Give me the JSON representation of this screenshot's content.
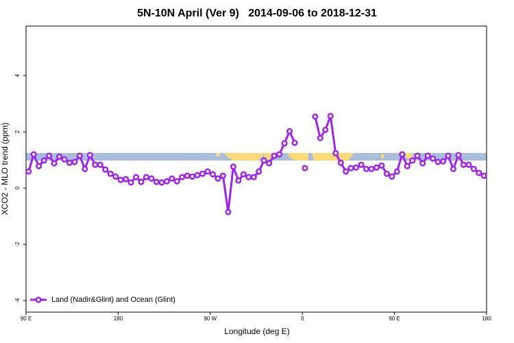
{
  "chart_data": {
    "type": "line",
    "title": "5N-10N April (Ver 9)   2014-09-06 to 2018-12-31",
    "x_label": "Longitude (deg E)",
    "y_label": "XCO2 - MLO trend (ppm)",
    "x": [
      92.5,
      97.5,
      102.5,
      107.5,
      112.5,
      117.5,
      122.5,
      127.5,
      132.5,
      137.5,
      142.5,
      147.5,
      152.5,
      157.5,
      162.5,
      167.5,
      172.5,
      177.5,
      182.5,
      187.5,
      192.5,
      197.5,
      202.5,
      207.5,
      212.5,
      217.5,
      222.5,
      227.5,
      232.5,
      237.5,
      242.5,
      247.5,
      252.5,
      257.5,
      262.5,
      267.5,
      272.5,
      277.5,
      282.5,
      287.5,
      292.5,
      297.5,
      302.5,
      307.5,
      312.5,
      317.5,
      322.5,
      327.5,
      332.5,
      337.5,
      342.5,
      347.5,
      352.5,
      357.5,
      362.5,
      367.5,
      372.5,
      377.5,
      382.5,
      387.5,
      392.5,
      397.5,
      402.5,
      407.5,
      412.5,
      417.5,
      422.5,
      427.5,
      432.5,
      437.5,
      442.5,
      447.5,
      452.5,
      457.5,
      462.5,
      467.5,
      472.5,
      477.5,
      482.5,
      487.5,
      492.5,
      497.5,
      502.5,
      507.5,
      512.5,
      517.5,
      522.5,
      527.5,
      532.5,
      537.5
    ],
    "series": [
      {
        "name": "Land (Nadir&Glint) and Ocean (Glint)",
        "color": "#a020f0",
        "values": [
          0.59,
          1.2,
          0.78,
          0.98,
          1.15,
          0.88,
          1.12,
          1.02,
          0.9,
          0.93,
          1.15,
          0.68,
          1.17,
          0.83,
          0.83,
          0.66,
          0.51,
          0.41,
          0.29,
          0.32,
          0.2,
          0.39,
          0.22,
          0.39,
          0.34,
          0.22,
          0.2,
          0.24,
          0.34,
          0.24,
          0.39,
          0.44,
          0.41,
          0.46,
          0.51,
          0.59,
          0.49,
          0.34,
          0.44,
          -0.85,
          0.76,
          0.27,
          0.49,
          0.39,
          0.39,
          0.59,
          0.98,
          0.88,
          1.15,
          1.2,
          1.59,
          2.02,
          1.61,
          null,
          0.71,
          null,
          2.54,
          1.78,
          2.07,
          2.56,
          1.24,
          0.9,
          0.59,
          0.71,
          0.73,
          0.83,
          0.68,
          0.68,
          0.73,
          0.8,
          0.51,
          0.41,
          0.59,
          1.2,
          0.78,
          0.98,
          1.15,
          0.88,
          1.15,
          1.05,
          0.93,
          0.95,
          1.15,
          0.68,
          1.17,
          0.83,
          0.83,
          0.68,
          0.54,
          0.44
        ]
      }
    ],
    "xlim": [
      90,
      540
    ],
    "xticks": [
      {
        "value": 90,
        "label": "90 E"
      },
      180,
      {
        "value": 270,
        "label": "90 W"
      },
      {
        "value": 360,
        "label": "0"
      },
      {
        "value": 450,
        "label": "90 E"
      },
      {
        "value": 540,
        "label": "180"
      }
    ],
    "ylim": [
      -4.41,
      5.76
    ],
    "yticks": [
      -4,
      -2,
      0,
      2,
      4
    ],
    "legend": "bottom-left"
  }
}
